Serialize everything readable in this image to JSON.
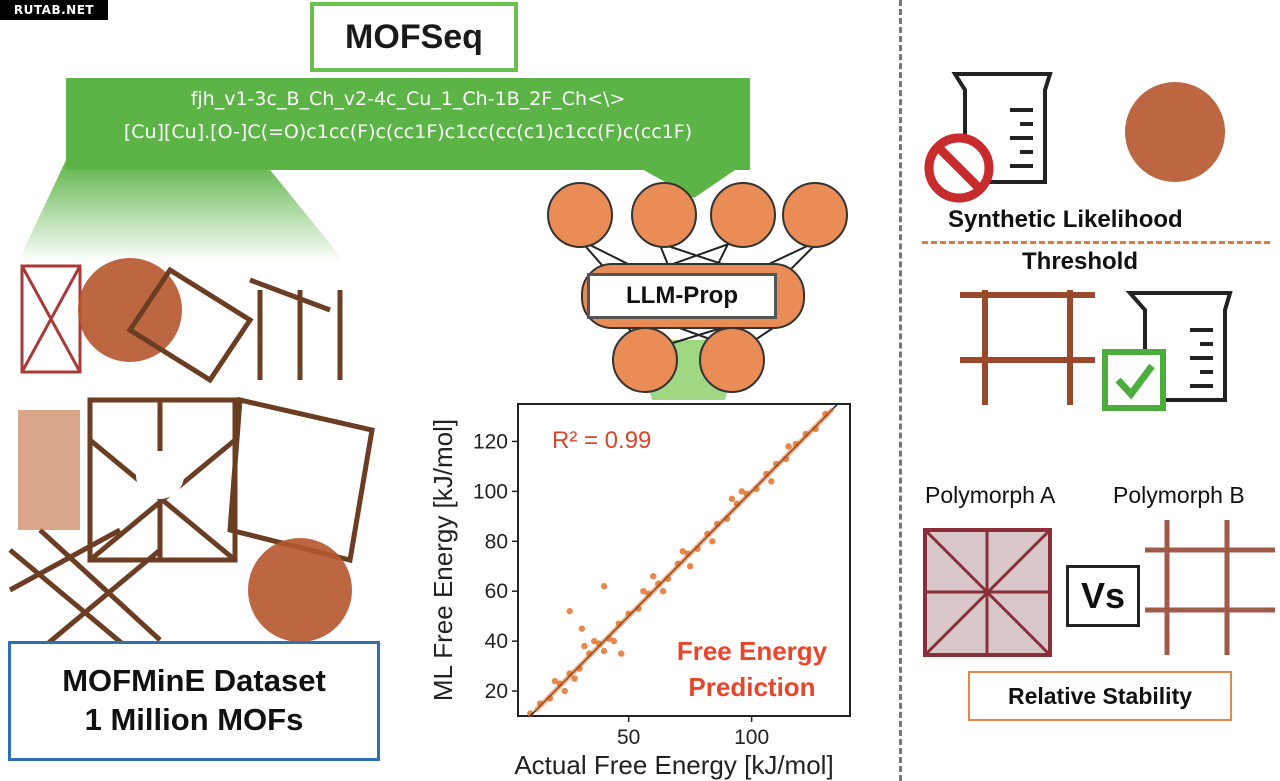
{
  "watermark": "RUTAB.NET",
  "mofseq": {
    "title": "MOFSeq",
    "line1": "fjh_v1-3c_B_Ch_v2-4c_Cu_1_Ch-1B_2F_Ch<\\>",
    "line2": "[Cu][Cu].[O-]C(=O)c1cc(F)c(cc1F)c1cc(cc(c1)c1cc(F)c(cc1F)"
  },
  "dataset": {
    "line1": "MOFMinE Dataset",
    "line2": "1 Million MOFs"
  },
  "model": {
    "label": "LLM-Prop"
  },
  "chart_data": {
    "type": "scatter",
    "xlabel": "Actual Free Energy [kJ/mol]",
    "ylabel": "ML Free Energy [kJ/mol]",
    "xlim": [
      5,
      140
    ],
    "ylim": [
      10,
      135
    ],
    "xticks": [
      50,
      100
    ],
    "yticks": [
      20,
      40,
      60,
      80,
      100,
      120
    ],
    "metric_label": "R² = 0.99",
    "annotation": [
      "Free Energy",
      "Prediction"
    ],
    "points_color": "#e2722c",
    "series": [
      {
        "x": [
          10,
          14,
          18,
          22,
          26,
          30,
          34,
          38,
          42,
          46,
          50,
          54,
          58,
          62,
          66,
          70,
          74,
          78,
          82,
          86,
          90,
          94,
          98,
          102,
          106,
          110,
          114,
          118,
          122,
          126,
          130,
          20,
          28,
          36,
          44,
          56,
          64,
          72,
          84,
          96,
          108,
          24,
          32,
          40,
          60,
          75,
          92,
          115,
          40,
          47,
          31,
          26
        ],
        "y": [
          11,
          15,
          17,
          23,
          27,
          29,
          35,
          39,
          41,
          47,
          51,
          53,
          59,
          63,
          65,
          71,
          75,
          77,
          83,
          87,
          89,
          95,
          99,
          101,
          107,
          111,
          113,
          119,
          123,
          125,
          131,
          24,
          25,
          40,
          40,
          60,
          60,
          76,
          80,
          100,
          104,
          20,
          38,
          36,
          66,
          70,
          97,
          118,
          62,
          35,
          45,
          52
        ]
      }
    ]
  },
  "right_panel": {
    "synthetic_label": "Synthetic Likelihood",
    "threshold_label": "Threshold",
    "polymorph_a": "Polymorph A",
    "polymorph_b": "Polymorph B",
    "vs_label": "Vs",
    "stability_label": "Relative Stability"
  }
}
